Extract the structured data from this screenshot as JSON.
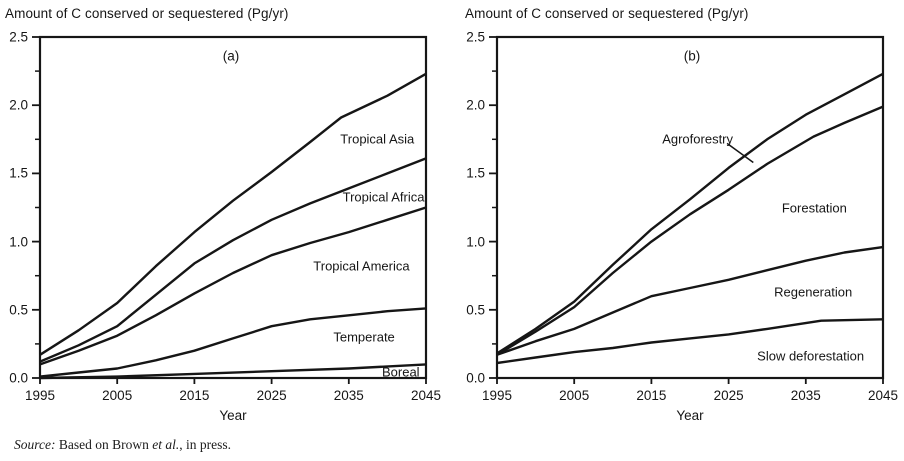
{
  "figure": {
    "source_note": {
      "label": "Source:",
      "body_1": " Based on Brown ",
      "etal": "et al.",
      "body_2": ", in press."
    }
  },
  "chart_data": [
    {
      "type": "line",
      "panel": "(a)",
      "title": "Amount of C conserved or sequestered (Pg/yr)",
      "xlabel": "Year",
      "ylabel": "",
      "xlim": [
        1995,
        2045
      ],
      "ylim": [
        0,
        2.5
      ],
      "grid": false,
      "legend_position": "inline-labels",
      "line_color": "#161616",
      "x_ticks": [
        1995,
        2005,
        2015,
        2025,
        2035,
        2045
      ],
      "x_tick_labels": [
        "1995",
        "2005",
        "2015",
        "2025",
        "2035",
        "2045"
      ],
      "y_ticks": [
        0,
        0.5,
        1,
        1.5,
        2,
        2.5
      ],
      "y_tick_labels": [
        "0.0",
        "0.5",
        "1.0",
        "1.5",
        "2.0",
        "2.5"
      ],
      "y_minor_ticks": [
        0.25,
        0.75,
        1.25,
        1.75,
        2.25
      ],
      "series": [
        {
          "name": "Tropical Asia",
          "points": [
            [
              1995,
              0.17
            ],
            [
              2000,
              0.35
            ],
            [
              2005,
              0.55
            ],
            [
              2010,
              0.82
            ],
            [
              2015,
              1.07
            ],
            [
              2020,
              1.3
            ],
            [
              2025,
              1.51
            ],
            [
              2030,
              1.73
            ],
            [
              2034,
              1.91
            ],
            [
              2040,
              2.07
            ],
            [
              2045,
              2.23
            ]
          ],
          "label_at": [
            2033.9,
            1.75
          ]
        },
        {
          "name": "Tropical Africa",
          "points": [
            [
              1995,
              0.12
            ],
            [
              2000,
              0.24
            ],
            [
              2005,
              0.38
            ],
            [
              2010,
              0.61
            ],
            [
              2015,
              0.84
            ],
            [
              2020,
              1.01
            ],
            [
              2025,
              1.16
            ],
            [
              2030,
              1.28
            ],
            [
              2035,
              1.39
            ],
            [
              2040,
              1.5
            ],
            [
              2045,
              1.61
            ]
          ],
          "label_at": [
            2034.2,
            1.33
          ]
        },
        {
          "name": "Tropical America",
          "points": [
            [
              1995,
              0.1
            ],
            [
              2000,
              0.2
            ],
            [
              2005,
              0.31
            ],
            [
              2010,
              0.46
            ],
            [
              2015,
              0.62
            ],
            [
              2020,
              0.77
            ],
            [
              2025,
              0.9
            ],
            [
              2030,
              0.99
            ],
            [
              2035,
              1.07
            ],
            [
              2040,
              1.16
            ],
            [
              2045,
              1.25
            ]
          ],
          "label_at": [
            2030.4,
            0.82
          ]
        },
        {
          "name": "Temperate",
          "points": [
            [
              1995,
              0.01
            ],
            [
              2000,
              0.04
            ],
            [
              2005,
              0.07
            ],
            [
              2010,
              0.13
            ],
            [
              2015,
              0.2
            ],
            [
              2020,
              0.29
            ],
            [
              2025,
              0.38
            ],
            [
              2030,
              0.43
            ],
            [
              2035,
              0.46
            ],
            [
              2040,
              0.49
            ],
            [
              2045,
              0.51
            ]
          ],
          "label_at": [
            2033.0,
            0.3
          ]
        },
        {
          "name": "Boreal",
          "points": [
            [
              1995,
              0.0
            ],
            [
              2005,
              0.01
            ],
            [
              2015,
              0.03
            ],
            [
              2025,
              0.05
            ],
            [
              2035,
              0.07
            ],
            [
              2045,
              0.1
            ]
          ],
          "label_at": [
            2039.3,
            0.045
          ]
        }
      ],
      "annotation_line": null
    },
    {
      "type": "line",
      "panel": "(b)",
      "title": "Amount of C conserved or sequestered (Pg/yr)",
      "xlabel": "Year",
      "ylabel": "",
      "xlim": [
        1995,
        2045
      ],
      "ylim": [
        0,
        2.5
      ],
      "grid": false,
      "legend_position": "inline-labels",
      "line_color": "#161616",
      "x_ticks": [
        1995,
        2005,
        2015,
        2025,
        2035,
        2045
      ],
      "x_tick_labels": [
        "1995",
        "2005",
        "2015",
        "2025",
        "2035",
        "2045"
      ],
      "y_ticks": [
        0,
        0.5,
        1,
        1.5,
        2,
        2.5
      ],
      "y_tick_labels": [
        "0.0",
        "0.5",
        "1.0",
        "1.5",
        "2.0",
        "2.5"
      ],
      "y_minor_ticks": [
        0.25,
        0.75,
        1.25,
        1.75,
        2.25
      ],
      "series": [
        {
          "name": "Agroforestry",
          "points": [
            [
              1995,
              0.18
            ],
            [
              2000,
              0.36
            ],
            [
              2005,
              0.56
            ],
            [
              2010,
              0.83
            ],
            [
              2015,
              1.09
            ],
            [
              2020,
              1.31
            ],
            [
              2025,
              1.54
            ],
            [
              2030,
              1.75
            ],
            [
              2035,
              1.93
            ],
            [
              2040,
              2.08
            ],
            [
              2045,
              2.23
            ]
          ],
          "label_at": [
            2016.4,
            1.75
          ]
        },
        {
          "name": "Forestation",
          "points": [
            [
              1995,
              0.17
            ],
            [
              2000,
              0.34
            ],
            [
              2005,
              0.52
            ],
            [
              2010,
              0.77
            ],
            [
              2015,
              1.0
            ],
            [
              2020,
              1.2
            ],
            [
              2025,
              1.38
            ],
            [
              2030,
              1.57
            ],
            [
              2036,
              1.77
            ],
            [
              2040,
              1.87
            ],
            [
              2045,
              1.99
            ]
          ],
          "label_at": [
            2031.9,
            1.25
          ]
        },
        {
          "name": "Regeneration",
          "points": [
            [
              1995,
              0.17
            ],
            [
              2000,
              0.27
            ],
            [
              2005,
              0.36
            ],
            [
              2010,
              0.48
            ],
            [
              2015,
              0.6
            ],
            [
              2020,
              0.66
            ],
            [
              2025,
              0.72
            ],
            [
              2030,
              0.79
            ],
            [
              2035,
              0.86
            ],
            [
              2040,
              0.92
            ],
            [
              2045,
              0.96
            ]
          ],
          "label_at": [
            2030.9,
            0.63
          ]
        },
        {
          "name": "Slow deforestation",
          "points": [
            [
              1995,
              0.11
            ],
            [
              2000,
              0.15
            ],
            [
              2005,
              0.19
            ],
            [
              2010,
              0.22
            ],
            [
              2015,
              0.26
            ],
            [
              2020,
              0.29
            ],
            [
              2025,
              0.32
            ],
            [
              2030,
              0.36
            ],
            [
              2037,
              0.42
            ],
            [
              2045,
              0.43
            ]
          ],
          "label_at": [
            2028.7,
            0.16
          ]
        }
      ],
      "annotation_line": {
        "from": [
          2024.8,
          1.72
        ],
        "to": [
          2028.2,
          1.58
        ]
      }
    }
  ]
}
